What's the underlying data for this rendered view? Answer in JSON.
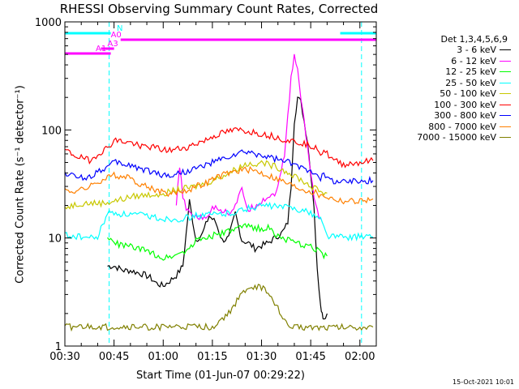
{
  "chart_data": {
    "type": "line",
    "title": "RHESSI Observing Summary Count Rates, Corrected",
    "xlabel": "Start Time (01-Jun-07 00:29:22)",
    "ylabel": "Corrected Count Rate (s⁻¹ detector⁻¹)",
    "y_scale": "log",
    "ylim": [
      1,
      1000
    ],
    "xlim_minutes": [
      30,
      125
    ],
    "x_ticks": [
      {
        "label": "00:30",
        "minutes": 30
      },
      {
        "label": "00:45",
        "minutes": 45
      },
      {
        "label": "01:00",
        "minutes": 60
      },
      {
        "label": "01:15",
        "minutes": 75
      },
      {
        "label": "01:30",
        "minutes": 90
      },
      {
        "label": "01:45",
        "minutes": 105
      },
      {
        "label": "02:00",
        "minutes": 120
      }
    ],
    "y_ticks": [
      {
        "label": "1",
        "value": 1
      },
      {
        "label": "10",
        "value": 10
      },
      {
        "label": "100",
        "value": 100
      },
      {
        "label": "1000",
        "value": 1000
      }
    ],
    "legend_title": "Det 1,3,4,5,6,9",
    "legend_position": "right",
    "series": [
      {
        "name": "3 - 6 keV",
        "color": "#000000",
        "x": [
          43,
          45,
          48,
          50,
          52,
          54,
          56,
          58,
          60,
          62,
          64,
          66,
          68,
          70,
          72,
          74,
          76,
          78,
          80,
          82,
          84,
          86,
          88,
          90,
          92,
          94,
          96,
          97,
          98,
          99,
          100,
          101,
          102,
          103,
          104,
          105,
          106,
          107,
          108,
          108.5,
          109,
          110
        ],
        "y": [
          5.5,
          5.5,
          5.0,
          5.0,
          4.8,
          4.6,
          4.3,
          3.8,
          3.6,
          4.0,
          4.5,
          5.5,
          22,
          9.5,
          11,
          16,
          14,
          9.5,
          10,
          17,
          9.5,
          9.0,
          8.0,
          8.5,
          9.0,
          10,
          11,
          12,
          14,
          30,
          120,
          200,
          180,
          120,
          80,
          40,
          20,
          5.0,
          2.5,
          2.0,
          1.8,
          2.0
        ]
      },
      {
        "name": "6 - 12 keV",
        "color": "#ff00ff",
        "x": [
          64,
          65,
          66,
          67,
          68,
          70,
          72,
          74,
          76,
          78,
          80,
          82,
          84,
          86,
          88,
          90,
          92,
          94,
          95,
          96,
          97,
          98,
          99,
          100,
          101,
          102,
          103,
          104,
          105,
          106,
          107,
          108
        ],
        "y": [
          20,
          45,
          25,
          18,
          17,
          16,
          15,
          17,
          20,
          18,
          17,
          20,
          28,
          18,
          20,
          22,
          24,
          26,
          30,
          40,
          60,
          130,
          300,
          500,
          350,
          200,
          120,
          70,
          40,
          25,
          18,
          15
        ]
      },
      {
        "name": "12 - 25 keV",
        "color": "#00ff00",
        "x": [
          43,
          45,
          48,
          50,
          52,
          55,
          58,
          60,
          62,
          64,
          66,
          68,
          70,
          72,
          75,
          78,
          80,
          82,
          84,
          86,
          88,
          90,
          92,
          94,
          96,
          98,
          100,
          102,
          104,
          106,
          108,
          109,
          110
        ],
        "y": [
          10,
          9,
          8.5,
          8.4,
          8.0,
          7.5,
          7.0,
          6.5,
          6.8,
          7.0,
          7.5,
          8.0,
          9.5,
          10,
          10.5,
          11,
          11.5,
          12,
          12.5,
          13,
          12.5,
          12,
          12.5,
          11,
          10,
          9.5,
          9.0,
          8.7,
          8.4,
          8.0,
          7.5,
          7.0,
          6.8
        ]
      },
      {
        "name": "25 - 50 keV",
        "color": "#00ffff",
        "x": [
          30,
          31,
          33,
          35,
          38,
          40,
          43,
          45,
          48,
          50,
          55,
          60,
          65,
          70,
          75,
          80,
          85,
          90,
          95,
          100,
          105,
          108,
          110,
          113,
          116,
          120,
          124
        ],
        "y": [
          11,
          10.5,
          10.3,
          10.2,
          10.0,
          10.1,
          17,
          17,
          16.5,
          16.5,
          16,
          15,
          15,
          16,
          16.5,
          17,
          18.5,
          20,
          19.5,
          19,
          17,
          15,
          10.5,
          10.3,
          10.2,
          10.3,
          10.2
        ]
      },
      {
        "name": "50 - 100 keV",
        "color": "#c8c800",
        "x": [
          30,
          32,
          35,
          38,
          40,
          42,
          45,
          48,
          50,
          55,
          60,
          65,
          70,
          75,
          80,
          85,
          90,
          95,
          100,
          105,
          108,
          110
        ],
        "y": [
          19,
          20,
          21,
          21,
          21,
          21,
          22,
          23,
          24,
          25,
          26,
          28,
          30,
          34,
          40,
          48,
          50,
          45,
          38,
          30,
          27,
          26
        ]
      },
      {
        "name": "100 - 300 keV",
        "color": "#ff0000",
        "x": [
          30,
          32,
          35,
          38,
          40,
          43,
          45,
          48,
          50,
          52,
          55,
          58,
          60,
          63,
          65,
          68,
          70,
          73,
          75,
          78,
          80,
          83,
          85,
          88,
          90,
          93,
          95,
          98,
          100,
          103,
          105,
          107,
          108,
          109,
          110,
          112,
          115,
          120,
          124
        ],
        "y": [
          65,
          60,
          55,
          52,
          60,
          68,
          80,
          78,
          76,
          73,
          70,
          68,
          65,
          65,
          67,
          70,
          75,
          80,
          87,
          93,
          97,
          100,
          98,
          95,
          92,
          88,
          85,
          80,
          78,
          75,
          72,
          70,
          60,
          65,
          60,
          52,
          48,
          50,
          52
        ]
      },
      {
        "name": "300 - 800 keV",
        "color": "#0000ff",
        "x": [
          30,
          32,
          35,
          38,
          40,
          43,
          45,
          48,
          50,
          52,
          55,
          58,
          60,
          63,
          65,
          68,
          70,
          73,
          75,
          78,
          80,
          83,
          85,
          88,
          90,
          93,
          95,
          98,
          100,
          103,
          105,
          107,
          108,
          109,
          110,
          112,
          115,
          120,
          124
        ],
        "y": [
          40,
          38,
          36,
          37,
          42,
          45,
          50,
          48,
          47,
          45,
          42,
          40,
          38,
          38,
          40,
          42,
          44,
          47,
          50,
          53,
          56,
          60,
          62,
          60,
          58,
          55,
          53,
          50,
          47,
          44,
          42,
          40,
          36,
          38,
          36,
          34,
          33,
          34,
          34
        ]
      },
      {
        "name": "800 - 7000 keV",
        "color": "#ff8000",
        "x": [
          30,
          32,
          35,
          38,
          40,
          43,
          45,
          48,
          50,
          52,
          55,
          58,
          60,
          63,
          65,
          68,
          70,
          73,
          75,
          78,
          80,
          83,
          85,
          88,
          90,
          93,
          95,
          98,
          100,
          103,
          105,
          107,
          108,
          109,
          110,
          112,
          115,
          120,
          124
        ],
        "y": [
          28,
          27,
          28,
          30,
          33,
          36,
          38,
          37,
          35,
          33,
          30,
          28,
          26,
          26,
          27,
          28,
          30,
          32,
          35,
          38,
          40,
          42,
          43,
          42,
          40,
          37,
          35,
          32,
          30,
          28,
          27,
          26,
          24,
          25,
          24,
          23,
          22,
          22,
          23
        ]
      },
      {
        "name": "7000 - 15000 keV",
        "color": "#808000",
        "x": [
          30,
          35,
          40,
          45,
          50,
          55,
          60,
          65,
          70,
          75,
          80,
          82,
          84,
          86,
          88,
          90,
          92,
          94,
          96,
          98,
          100,
          105,
          110,
          115,
          120,
          124
        ],
        "y": [
          1.5,
          1.5,
          1.5,
          1.5,
          1.5,
          1.5,
          1.5,
          1.5,
          1.5,
          1.5,
          2.0,
          2.5,
          3.0,
          3.5,
          3.5,
          3.5,
          3.0,
          2.5,
          2.0,
          1.5,
          1.5,
          1.5,
          1.5,
          1.5,
          1.5,
          1.5
        ]
      }
    ],
    "annotations": {
      "vertical_markers_minutes": [
        43.5,
        120.5
      ],
      "vertical_marker_color": "#00ffff",
      "flag_bars": [
        {
          "label": "N",
          "color": "#00ffff",
          "level": "top",
          "ranges": [
            [
              30,
              44
            ],
            [
              114,
              125
            ]
          ]
        },
        {
          "label": "A0",
          "color": "#ff00ff",
          "level": "second",
          "ranges": [
            [
              47,
              125
            ]
          ]
        },
        {
          "label": "A1",
          "color": "#ff00ff",
          "level": "third",
          "ranges": [
            [
              30,
              44
            ]
          ]
        },
        {
          "label": "A3",
          "color": "#ff00ff",
          "level": "fourth",
          "ranges": [
            [
              41,
              45
            ]
          ]
        }
      ]
    },
    "grid": false
  },
  "footer": {
    "date_stamp": "15-Oct-2021 10:01"
  }
}
